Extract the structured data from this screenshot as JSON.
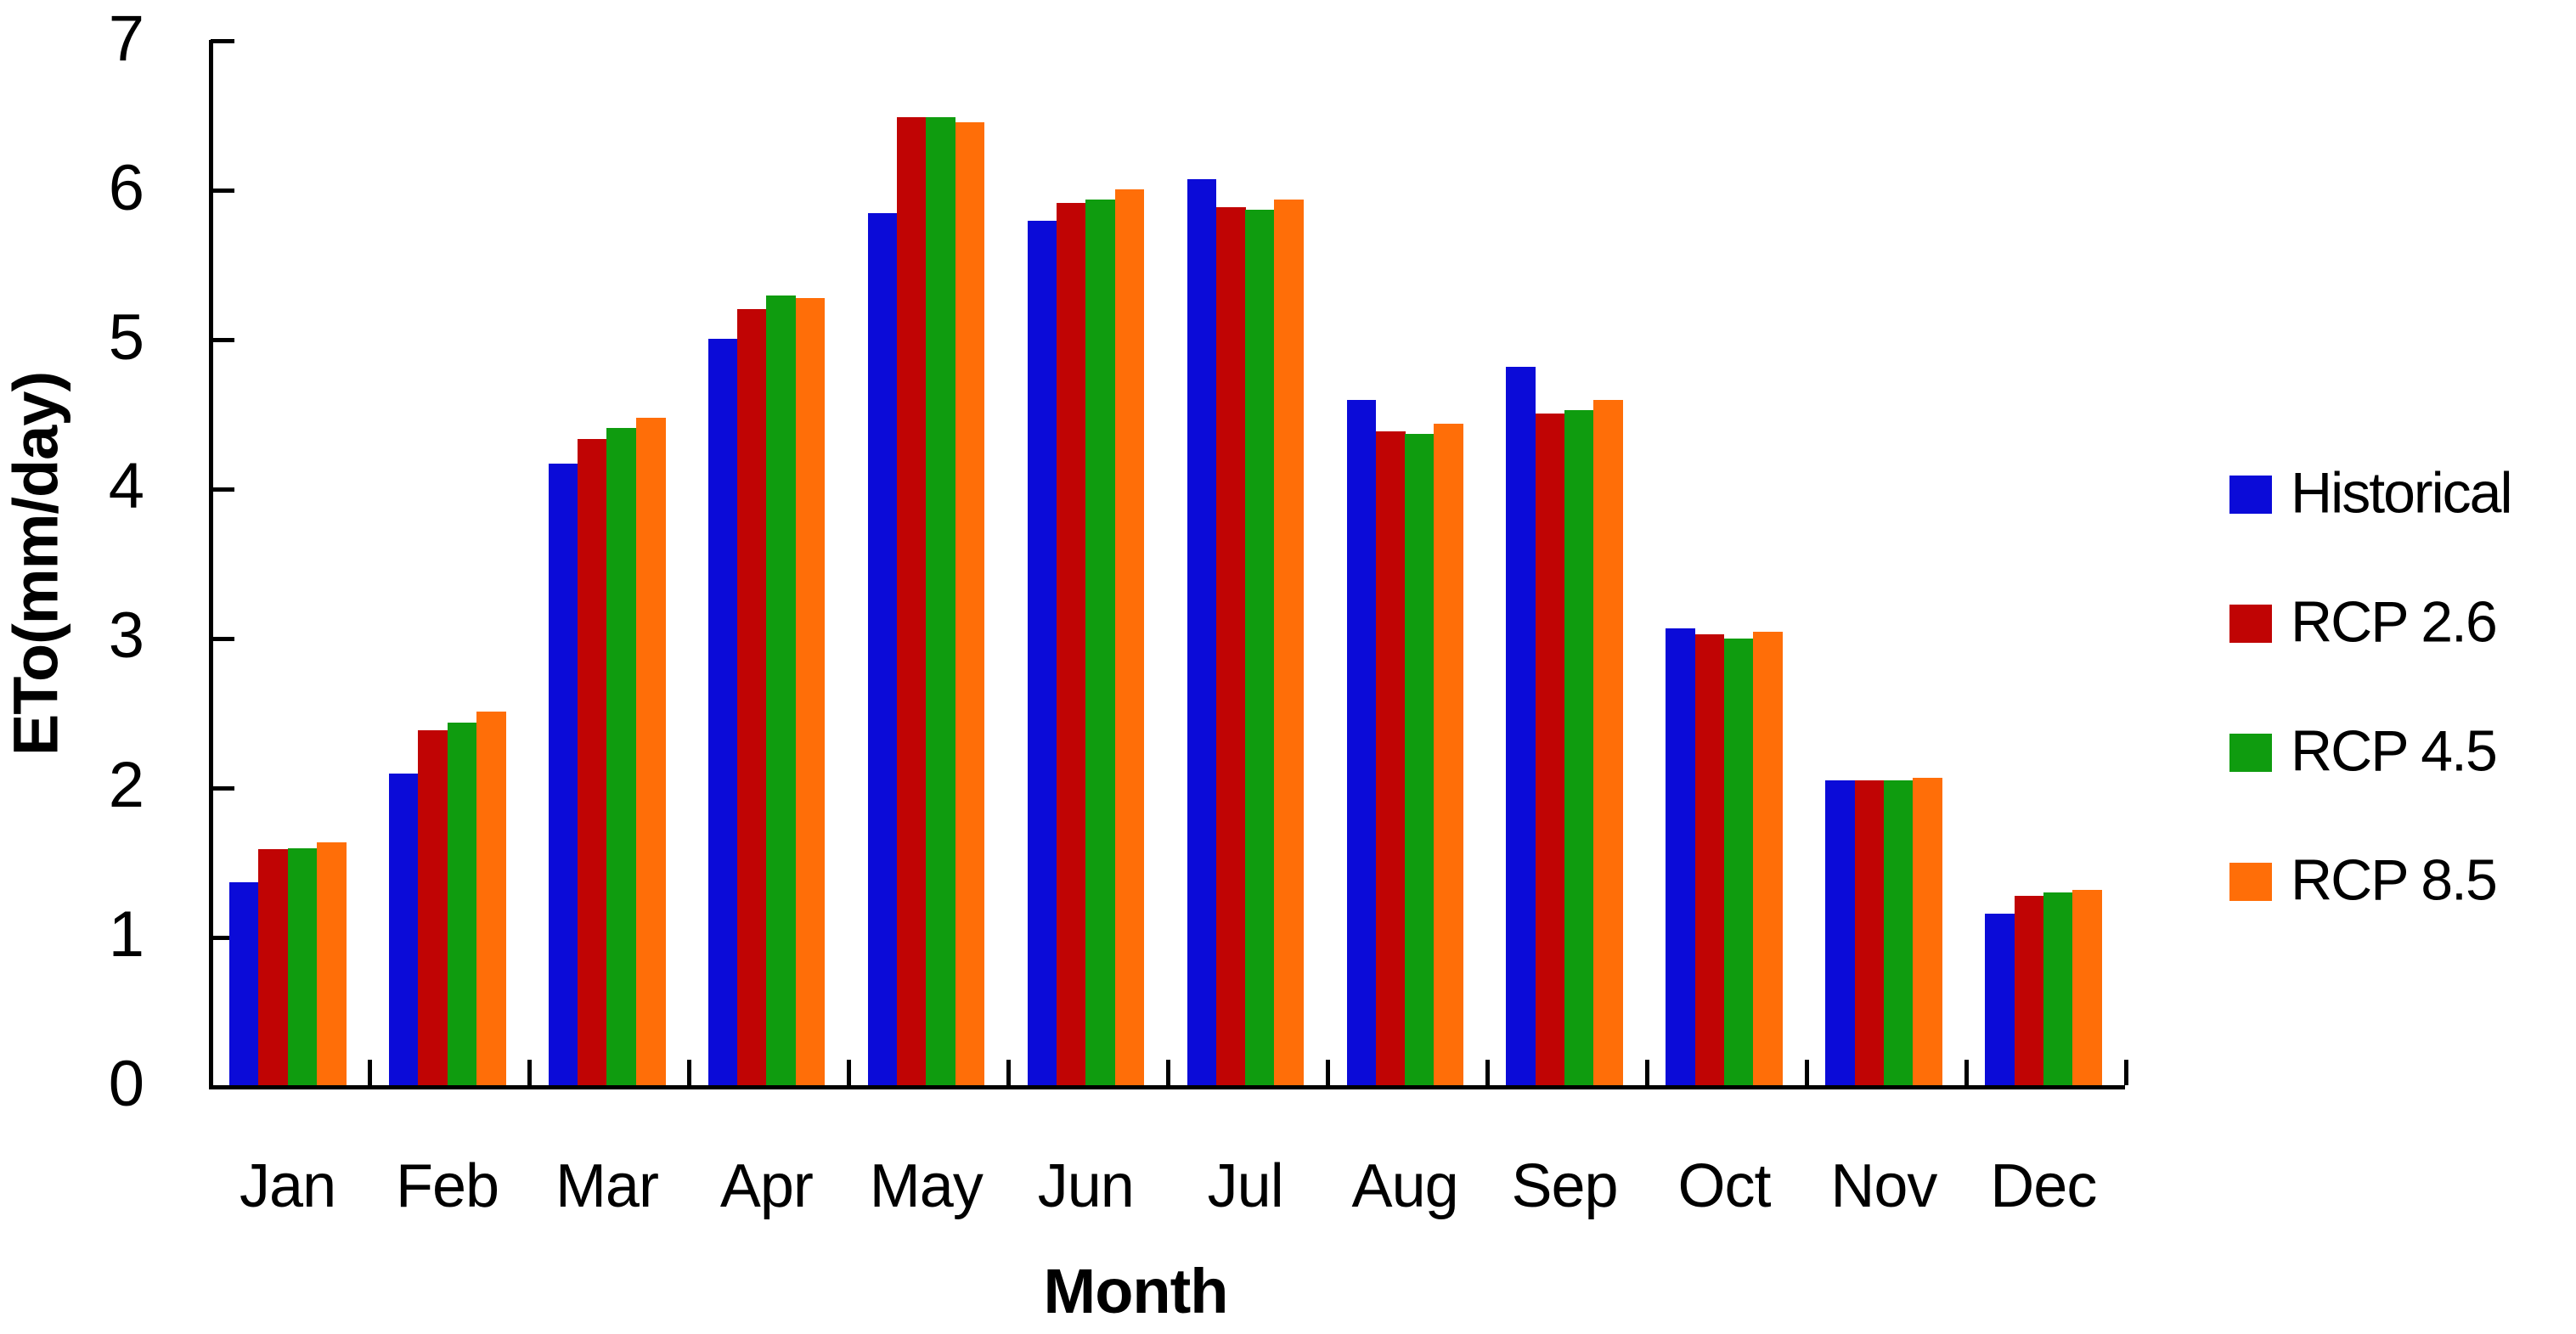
{
  "chart_data": {
    "type": "bar",
    "title": "",
    "xlabel": "Month",
    "ylabel": "ETo(mm/day)",
    "categories": [
      "Jan",
      "Feb",
      "Mar",
      "Apr",
      "May",
      "Jun",
      "Jul",
      "Aug",
      "Sep",
      "Oct",
      "Nov",
      "Dec"
    ],
    "series": [
      {
        "name": "Historical",
        "color": "#0b0bd8",
        "values": [
          1.37,
          2.1,
          4.17,
          5.01,
          5.85,
          5.8,
          6.08,
          4.6,
          4.82,
          3.07,
          2.05,
          1.16
        ]
      },
      {
        "name": "RCP 2.6",
        "color": "#c00404",
        "values": [
          1.59,
          2.39,
          4.34,
          5.21,
          6.49,
          5.92,
          5.89,
          4.39,
          4.51,
          3.03,
          2.05,
          1.28
        ]
      },
      {
        "name": "RCP 4.5",
        "color": "#0f9c0f",
        "values": [
          1.6,
          2.44,
          4.41,
          5.3,
          6.49,
          5.94,
          5.87,
          4.37,
          4.53,
          3.0,
          2.05,
          1.3
        ]
      },
      {
        "name": "RCP 8.5",
        "color": "#ff6e08",
        "values": [
          1.64,
          2.51,
          4.48,
          5.28,
          6.46,
          6.01,
          5.94,
          4.44,
          4.6,
          3.05,
          2.07,
          1.32
        ]
      }
    ],
    "y_ticks": [
      0,
      1,
      2,
      3,
      4,
      5,
      6,
      7
    ],
    "ylim": [
      0,
      7
    ],
    "grid": false,
    "legend_position": "right",
    "axis_color": "#000000"
  }
}
